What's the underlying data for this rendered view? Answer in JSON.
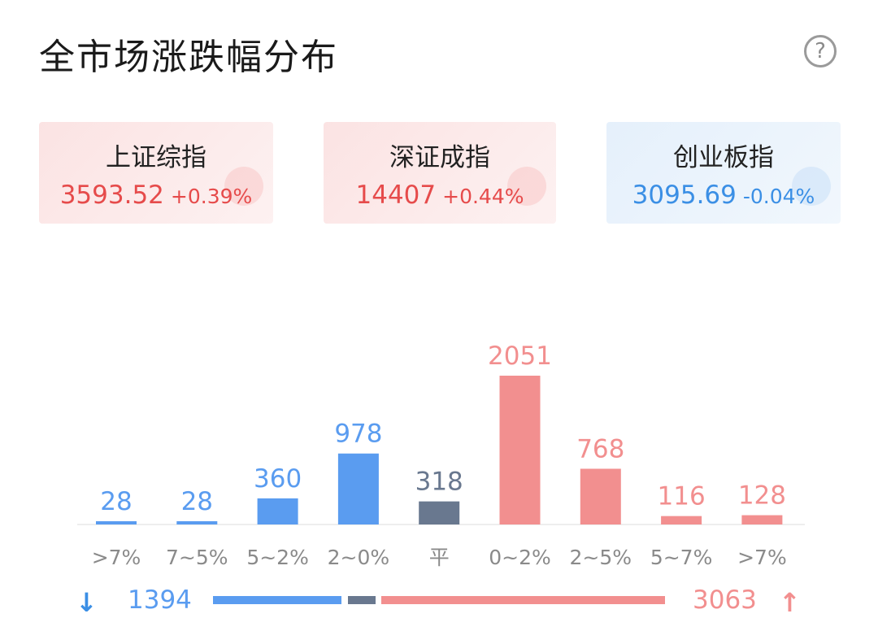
{
  "title": "全市场涨跌幅分布",
  "help_icon": "question-circle-icon",
  "indices": [
    {
      "name": "上证综指",
      "value": "3593.52",
      "change": "+0.39%",
      "trend": "up"
    },
    {
      "name": "深证成指",
      "value": "14407",
      "change": "+0.44%",
      "trend": "up"
    },
    {
      "name": "创业板指",
      "value": "3095.69",
      "change": "-0.04%",
      "trend": "down"
    }
  ],
  "colors": {
    "down": "#5a9cf0",
    "flat": "#69788f",
    "up": "#f28f8f",
    "down_text": "#3b8fe5",
    "up_text": "#e64b4b"
  },
  "chart_data": {
    "type": "bar",
    "categories": [
      ">7%",
      "7~5%",
      "5~2%",
      "2~0%",
      "平",
      "0~2%",
      "2~5%",
      "5~7%",
      ">7%"
    ],
    "values": [
      28,
      28,
      360,
      978,
      318,
      2051,
      768,
      116,
      128
    ],
    "groups": [
      "down",
      "down",
      "down",
      "down",
      "flat",
      "up",
      "up",
      "up",
      "up"
    ],
    "ylim": [
      0,
      2051
    ]
  },
  "summary": {
    "down_total": "1394",
    "up_total": "3063",
    "down_icon": "arrow-down-icon",
    "up_icon": "arrow-up-icon"
  }
}
